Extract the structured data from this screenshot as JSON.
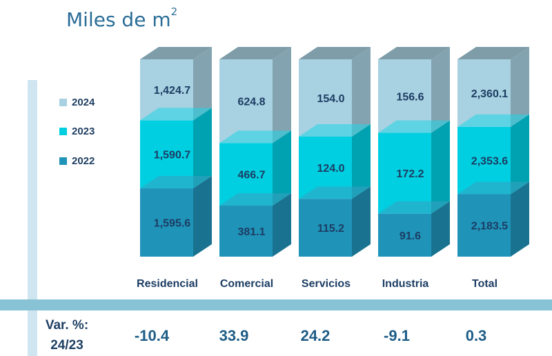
{
  "unit_label": "Miles de m",
  "unit_sup": "2",
  "legend": [
    {
      "label": "2024",
      "color": "#a8d1e1"
    },
    {
      "label": "2023",
      "color": "#00cfe1"
    },
    {
      "label": "2022",
      "color": "#2093b9"
    }
  ],
  "variation": {
    "label_line1": "Var. %:",
    "label_line2": "24/23",
    "values": [
      "-10.4",
      "33.9",
      "24.2",
      "-9.1",
      "0.3"
    ]
  },
  "chart_data": {
    "type": "bar",
    "stacked": true,
    "style": "3d",
    "title": "",
    "ylabel": "Miles de m2",
    "categories": [
      "Residencial",
      "Comercial",
      "Servicios",
      "Industria",
      "Total"
    ],
    "series": [
      {
        "name": "2022",
        "values": [
          1595.6,
          381.1,
          115.2,
          91.6,
          2183.5
        ],
        "labels": [
          "1,595.6",
          "381.1",
          "115.2",
          "91.6",
          "2,183.5"
        ],
        "color": "#2093b9"
      },
      {
        "name": "2023",
        "values": [
          1590.7,
          466.7,
          124.0,
          172.2,
          2353.6
        ],
        "labels": [
          "1,590.7",
          "466.7",
          "124.0",
          "172.2",
          "2,353.6"
        ],
        "color": "#00cfe1"
      },
      {
        "name": "2024",
        "values": [
          1424.7,
          624.8,
          154.0,
          156.6,
          2360.1
        ],
        "labels": [
          "1,424.7",
          "624.8",
          "154.0",
          "156.6",
          "2,360.1"
        ],
        "color": "#a8d1e1"
      }
    ],
    "legend_position": "left",
    "grid": false
  }
}
